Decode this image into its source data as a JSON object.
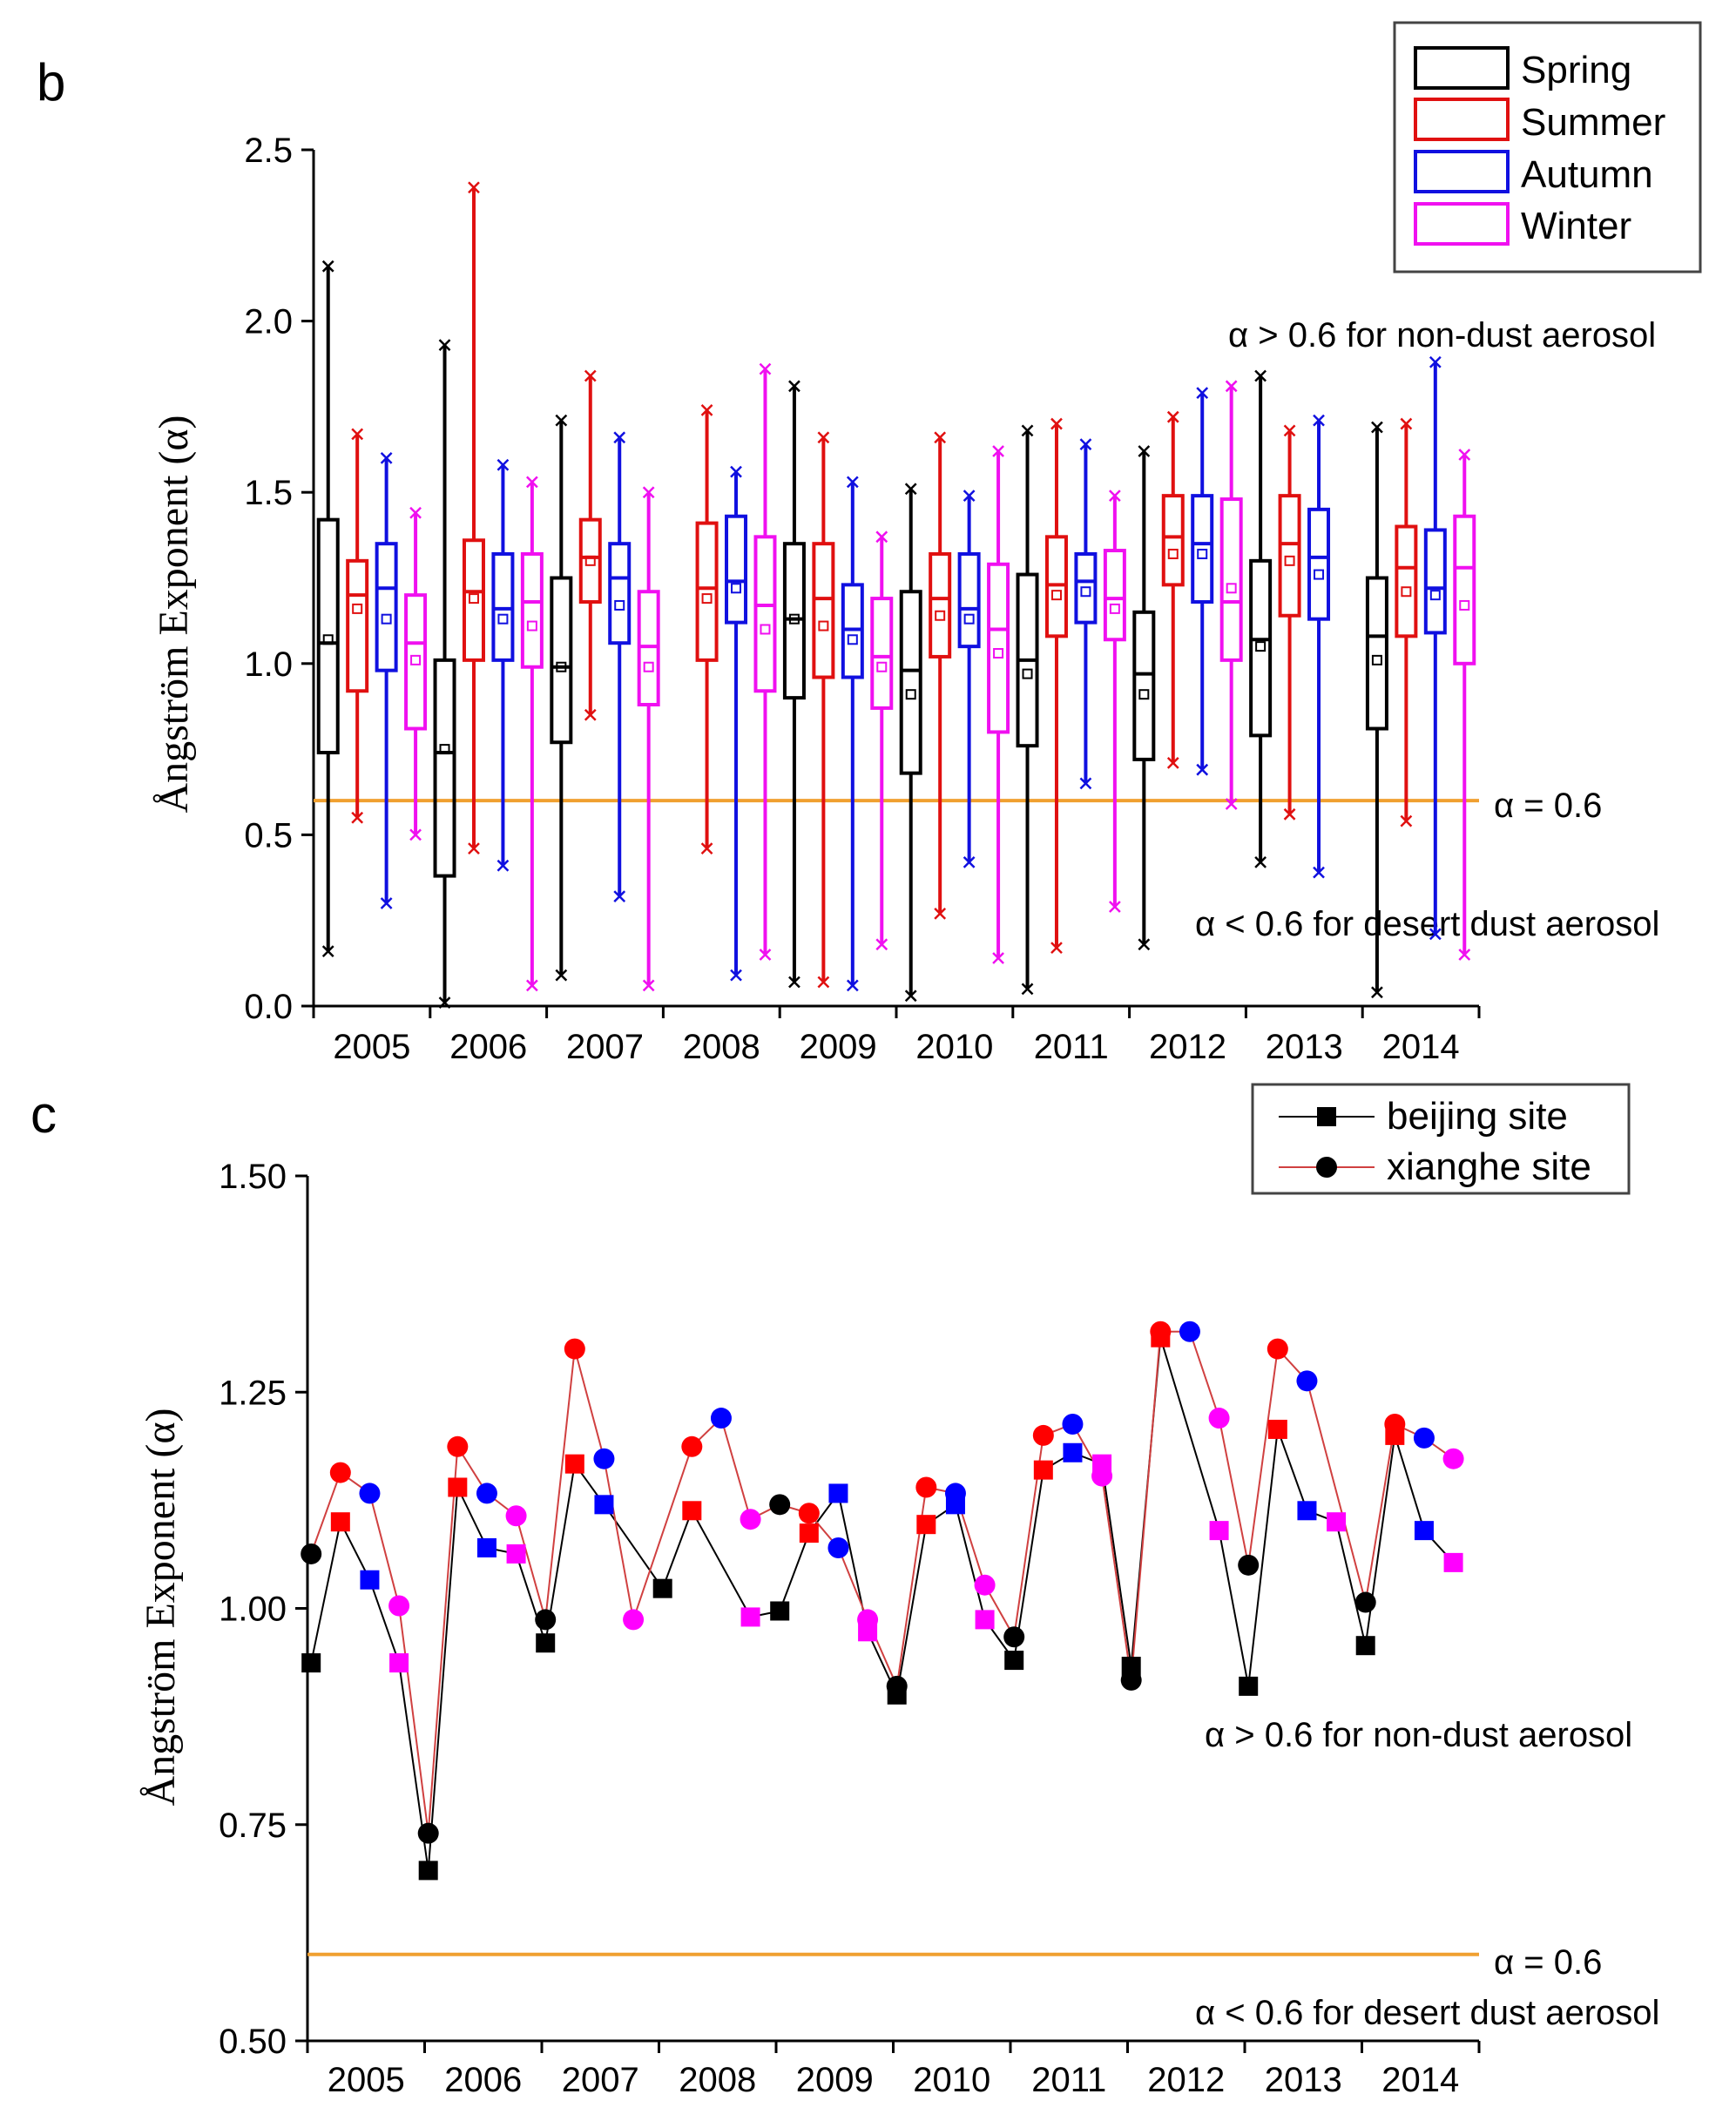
{
  "panel_b": {
    "letter": "b",
    "ylabel": "Ångström Exponent (α)",
    "yticks": [
      "0.0",
      "0.5",
      "1.0",
      "1.5",
      "2.0",
      "2.5"
    ],
    "ylim": [
      0,
      2.5
    ],
    "years": [
      "2005",
      "2006",
      "2007",
      "2008",
      "2009",
      "2010",
      "2011",
      "2012",
      "2013",
      "2014"
    ],
    "legend": [
      {
        "label": "Spring",
        "color": "#000000"
      },
      {
        "label": "Summer",
        "color": "#e01010"
      },
      {
        "label": "Autumn",
        "color": "#1010e0"
      },
      {
        "label": "Winter",
        "color": "#f010f0"
      }
    ],
    "threshold": 0.6,
    "threshold_label": "α = 0.6",
    "annotation_above": "α > 0.6 for  non-dust aerosol",
    "annotation_below": "α < 0.6 for desert dust aerosol",
    "line_color": "#f0a030"
  },
  "panel_c": {
    "letter": "c",
    "ylabel": "Ångström Exponent (α)",
    "yticks": [
      "0.50",
      "0.75",
      "1.00",
      "1.25",
      "1.50"
    ],
    "ylim": [
      0.5,
      1.5
    ],
    "years": [
      "2005",
      "2006",
      "2007",
      "2008",
      "2009",
      "2010",
      "2011",
      "2012",
      "2013",
      "2014"
    ],
    "legend": [
      {
        "label": "beijing site",
        "marker": "square",
        "line_color": "#000000"
      },
      {
        "label": "xianghe site",
        "marker": "circle",
        "line_color": "#d04040"
      }
    ],
    "threshold": 0.6,
    "threshold_label": "α = 0.6",
    "annotation_above": "α > 0.6 for  non-dust aerosol",
    "annotation_below": "α < 0.6 for desert dust aerosol",
    "line_color": "#f0a030"
  },
  "chart_data": [
    {
      "type": "box",
      "title": "",
      "ylabel": "Ångström Exponent (α)",
      "ylim": [
        0,
        2.5
      ],
      "categories": [
        "2005",
        "2006",
        "2007",
        "2008",
        "2009",
        "2010",
        "2011",
        "2012",
        "2013",
        "2014"
      ],
      "series": [
        {
          "name": "Spring",
          "color": "#000000",
          "boxes": [
            {
              "min": 0.16,
              "q1": 0.74,
              "median": 1.06,
              "q3": 1.42,
              "max": 2.16,
              "mean": 1.07
            },
            {
              "min": 0.01,
              "q1": 0.38,
              "median": 0.74,
              "q3": 1.01,
              "max": 1.93,
              "mean": 0.75
            },
            {
              "min": 0.09,
              "q1": 0.77,
              "median": 0.99,
              "q3": 1.25,
              "max": 1.71,
              "mean": 0.99
            },
            null,
            {
              "min": 0.07,
              "q1": 0.9,
              "median": 1.13,
              "q3": 1.35,
              "max": 1.81,
              "mean": 1.13
            },
            {
              "min": 0.03,
              "q1": 0.68,
              "median": 0.98,
              "q3": 1.21,
              "max": 1.51,
              "mean": 0.91
            },
            {
              "min": 0.05,
              "q1": 0.76,
              "median": 1.01,
              "q3": 1.26,
              "max": 1.68,
              "mean": 0.97
            },
            {
              "min": 0.18,
              "q1": 0.72,
              "median": 0.97,
              "q3": 1.15,
              "max": 1.62,
              "mean": 0.91
            },
            {
              "min": 0.42,
              "q1": 0.79,
              "median": 1.07,
              "q3": 1.3,
              "max": 1.84,
              "mean": 1.05
            },
            {
              "min": 0.04,
              "q1": 0.81,
              "median": 1.08,
              "q3": 1.25,
              "max": 1.69,
              "mean": 1.01
            }
          ]
        },
        {
          "name": "Summer",
          "color": "#e01010",
          "boxes": [
            {
              "min": 0.55,
              "q1": 0.92,
              "median": 1.2,
              "q3": 1.3,
              "max": 1.67,
              "mean": 1.16
            },
            {
              "min": 0.46,
              "q1": 1.01,
              "median": 1.21,
              "q3": 1.36,
              "max": 2.39,
              "mean": 1.19
            },
            {
              "min": 0.85,
              "q1": 1.18,
              "median": 1.31,
              "q3": 1.42,
              "max": 1.84,
              "mean": 1.3
            },
            {
              "min": 0.46,
              "q1": 1.01,
              "median": 1.22,
              "q3": 1.41,
              "max": 1.74,
              "mean": 1.19
            },
            {
              "min": 0.07,
              "q1": 0.96,
              "median": 1.19,
              "q3": 1.35,
              "max": 1.66,
              "mean": 1.11
            },
            {
              "min": 0.27,
              "q1": 1.02,
              "median": 1.19,
              "q3": 1.32,
              "max": 1.66,
              "mean": 1.14
            },
            {
              "min": 0.17,
              "q1": 1.08,
              "median": 1.23,
              "q3": 1.37,
              "max": 1.7,
              "mean": 1.2
            },
            {
              "min": 0.71,
              "q1": 1.23,
              "median": 1.37,
              "q3": 1.49,
              "max": 1.72,
              "mean": 1.32
            },
            {
              "min": 0.56,
              "q1": 1.14,
              "median": 1.35,
              "q3": 1.49,
              "max": 1.68,
              "mean": 1.3
            },
            {
              "min": 0.54,
              "q1": 1.08,
              "median": 1.28,
              "q3": 1.4,
              "max": 1.7,
              "mean": 1.21
            }
          ]
        },
        {
          "name": "Autumn",
          "color": "#1010e0",
          "boxes": [
            {
              "min": 0.3,
              "q1": 0.98,
              "median": 1.22,
              "q3": 1.35,
              "max": 1.6,
              "mean": 1.13
            },
            {
              "min": 0.41,
              "q1": 1.01,
              "median": 1.16,
              "q3": 1.32,
              "max": 1.58,
              "mean": 1.13
            },
            {
              "min": 0.32,
              "q1": 1.06,
              "median": 1.25,
              "q3": 1.35,
              "max": 1.66,
              "mean": 1.17
            },
            {
              "min": 0.09,
              "q1": 1.12,
              "median": 1.24,
              "q3": 1.43,
              "max": 1.56,
              "mean": 1.22
            },
            {
              "min": 0.06,
              "q1": 0.96,
              "median": 1.1,
              "q3": 1.23,
              "max": 1.53,
              "mean": 1.07
            },
            {
              "min": 0.42,
              "q1": 1.05,
              "median": 1.16,
              "q3": 1.32,
              "max": 1.49,
              "mean": 1.13
            },
            {
              "min": 0.65,
              "q1": 1.12,
              "median": 1.24,
              "q3": 1.32,
              "max": 1.64,
              "mean": 1.21
            },
            {
              "min": 0.69,
              "q1": 1.18,
              "median": 1.35,
              "q3": 1.49,
              "max": 1.79,
              "mean": 1.32
            },
            {
              "min": 0.39,
              "q1": 1.13,
              "median": 1.31,
              "q3": 1.45,
              "max": 1.71,
              "mean": 1.26
            },
            {
              "min": 0.21,
              "q1": 1.09,
              "median": 1.22,
              "q3": 1.39,
              "max": 1.88,
              "mean": 1.2
            }
          ]
        },
        {
          "name": "Winter",
          "color": "#f010f0",
          "boxes": [
            {
              "min": 0.5,
              "q1": 0.81,
              "median": 1.06,
              "q3": 1.2,
              "max": 1.44,
              "mean": 1.01
            },
            {
              "min": 0.06,
              "q1": 0.99,
              "median": 1.18,
              "q3": 1.32,
              "max": 1.53,
              "mean": 1.11
            },
            {
              "min": 0.06,
              "q1": 0.88,
              "median": 1.05,
              "q3": 1.21,
              "max": 1.5,
              "mean": 0.99
            },
            {
              "min": 0.15,
              "q1": 0.92,
              "median": 1.17,
              "q3": 1.37,
              "max": 1.86,
              "mean": 1.1
            },
            {
              "min": 0.18,
              "q1": 0.87,
              "median": 1.02,
              "q3": 1.19,
              "max": 1.37,
              "mean": 0.99
            },
            {
              "min": 0.14,
              "q1": 0.8,
              "median": 1.1,
              "q3": 1.29,
              "max": 1.62,
              "mean": 1.03
            },
            {
              "min": 0.29,
              "q1": 1.07,
              "median": 1.19,
              "q3": 1.33,
              "max": 1.49,
              "mean": 1.16
            },
            {
              "min": 0.59,
              "q1": 1.01,
              "median": 1.18,
              "q3": 1.48,
              "max": 1.81,
              "mean": 1.22
            },
            null,
            {
              "min": 0.15,
              "q1": 1.0,
              "median": 1.28,
              "q3": 1.43,
              "max": 1.61,
              "mean": 1.17
            }
          ]
        }
      ],
      "reference_line": 0.6
    },
    {
      "type": "line",
      "title": "",
      "ylabel": "Ångström Exponent (α)",
      "ylim": [
        0.5,
        1.5
      ],
      "categories": [
        "2005",
        "2006",
        "2007",
        "2008",
        "2009",
        "2010",
        "2011",
        "2012",
        "2013",
        "2014"
      ],
      "season_colors": {
        "Spring": "#000000",
        "Summer": "#ff0000",
        "Autumn": "#0000ff",
        "Winter": "#ff00ff"
      },
      "series": [
        {
          "name": "beijing site",
          "marker": "square",
          "points": [
            {
              "year": "2005",
              "season": "Spring",
              "y": 0.937
            },
            {
              "year": "2005",
              "season": "Summer",
              "y": 1.1
            },
            {
              "year": "2005",
              "season": "Autumn",
              "y": 1.033
            },
            {
              "year": "2005",
              "season": "Winter",
              "y": 0.937
            },
            {
              "year": "2006",
              "season": "Spring",
              "y": 0.697
            },
            {
              "year": "2006",
              "season": "Summer",
              "y": 1.14
            },
            {
              "year": "2006",
              "season": "Autumn",
              "y": 1.07
            },
            {
              "year": "2006",
              "season": "Winter",
              "y": 1.063
            },
            {
              "year": "2007",
              "season": "Spring",
              "y": 0.96
            },
            {
              "year": "2007",
              "season": "Summer",
              "y": 1.167
            },
            {
              "year": "2007",
              "season": "Autumn",
              "y": 1.12
            },
            {
              "year": "2008",
              "season": "Spring",
              "y": 1.023
            },
            {
              "year": "2008",
              "season": "Summer",
              "y": 1.113
            },
            {
              "year": "2008",
              "season": "Winter",
              "y": 0.99
            },
            {
              "year": "2009",
              "season": "Spring",
              "y": 0.997
            },
            {
              "year": "2009",
              "season": "Summer",
              "y": 1.087
            },
            {
              "year": "2009",
              "season": "Autumn",
              "y": 1.133
            },
            {
              "year": "2009",
              "season": "Winter",
              "y": 0.973
            },
            {
              "year": "2010",
              "season": "Spring",
              "y": 0.9
            },
            {
              "year": "2010",
              "season": "Summer",
              "y": 1.097
            },
            {
              "year": "2010",
              "season": "Autumn",
              "y": 1.12
            },
            {
              "year": "2010",
              "season": "Winter",
              "y": 0.987
            },
            {
              "year": "2011",
              "season": "Spring",
              "y": 0.94
            },
            {
              "year": "2011",
              "season": "Summer",
              "y": 1.16
            },
            {
              "year": "2011",
              "season": "Autumn",
              "y": 1.18
            },
            {
              "year": "2011",
              "season": "Winter",
              "y": 1.167
            },
            {
              "year": "2012",
              "season": "Spring",
              "y": 0.933
            },
            {
              "year": "2012",
              "season": "Summer",
              "y": 1.313
            },
            {
              "year": "2012",
              "season": "Winter",
              "y": 1.09
            },
            {
              "year": "2013",
              "season": "Spring",
              "y": 0.91
            },
            {
              "year": "2013",
              "season": "Summer",
              "y": 1.207
            },
            {
              "year": "2013",
              "season": "Autumn",
              "y": 1.113
            },
            {
              "year": "2013",
              "season": "Winter",
              "y": 1.1
            },
            {
              "year": "2014",
              "season": "Spring",
              "y": 0.957
            },
            {
              "year": "2014",
              "season": "Summer",
              "y": 1.2
            },
            {
              "year": "2014",
              "season": "Autumn",
              "y": 1.09
            },
            {
              "year": "2014",
              "season": "Winter",
              "y": 1.053
            }
          ]
        },
        {
          "name": "xianghe site",
          "marker": "circle",
          "points": [
            {
              "year": "2005",
              "season": "Spring",
              "y": 1.063
            },
            {
              "year": "2005",
              "season": "Summer",
              "y": 1.157
            },
            {
              "year": "2005",
              "season": "Autumn",
              "y": 1.133
            },
            {
              "year": "2005",
              "season": "Winter",
              "y": 1.003
            },
            {
              "year": "2006",
              "season": "Spring",
              "y": 0.74
            },
            {
              "year": "2006",
              "season": "Summer",
              "y": 1.187
            },
            {
              "year": "2006",
              "season": "Autumn",
              "y": 1.133
            },
            {
              "year": "2006",
              "season": "Winter",
              "y": 1.107
            },
            {
              "year": "2007",
              "season": "Spring",
              "y": 0.987
            },
            {
              "year": "2007",
              "season": "Summer",
              "y": 1.3
            },
            {
              "year": "2007",
              "season": "Autumn",
              "y": 1.173
            },
            {
              "year": "2007",
              "season": "Winter",
              "y": 0.987
            },
            {
              "year": "2008",
              "season": "Summer",
              "y": 1.187
            },
            {
              "year": "2008",
              "season": "Autumn",
              "y": 1.22
            },
            {
              "year": "2008",
              "season": "Winter",
              "y": 1.103
            },
            {
              "year": "2009",
              "season": "Spring",
              "y": 1.12
            },
            {
              "year": "2009",
              "season": "Summer",
              "y": 1.11
            },
            {
              "year": "2009",
              "season": "Autumn",
              "y": 1.07
            },
            {
              "year": "2009",
              "season": "Winter",
              "y": 0.987
            },
            {
              "year": "2010",
              "season": "Spring",
              "y": 0.91
            },
            {
              "year": "2010",
              "season": "Summer",
              "y": 1.14
            },
            {
              "year": "2010",
              "season": "Autumn",
              "y": 1.133
            },
            {
              "year": "2010",
              "season": "Winter",
              "y": 1.027
            },
            {
              "year": "2011",
              "season": "Spring",
              "y": 0.967
            },
            {
              "year": "2011",
              "season": "Summer",
              "y": 1.2
            },
            {
              "year": "2011",
              "season": "Autumn",
              "y": 1.213
            },
            {
              "year": "2011",
              "season": "Winter",
              "y": 1.153
            },
            {
              "year": "2012",
              "season": "Spring",
              "y": 0.917
            },
            {
              "year": "2012",
              "season": "Summer",
              "y": 1.32
            },
            {
              "year": "2012",
              "season": "Autumn",
              "y": 1.32
            },
            {
              "year": "2012",
              "season": "Winter",
              "y": 1.22
            },
            {
              "year": "2013",
              "season": "Spring",
              "y": 1.05
            },
            {
              "year": "2013",
              "season": "Summer",
              "y": 1.3
            },
            {
              "year": "2013",
              "season": "Autumn",
              "y": 1.263
            },
            {
              "year": "2014",
              "season": "Spring",
              "y": 1.007
            },
            {
              "year": "2014",
              "season": "Summer",
              "y": 1.213
            },
            {
              "year": "2014",
              "season": "Autumn",
              "y": 1.197
            },
            {
              "year": "2014",
              "season": "Winter",
              "y": 1.173
            }
          ]
        }
      ],
      "reference_line": 0.6
    }
  ]
}
